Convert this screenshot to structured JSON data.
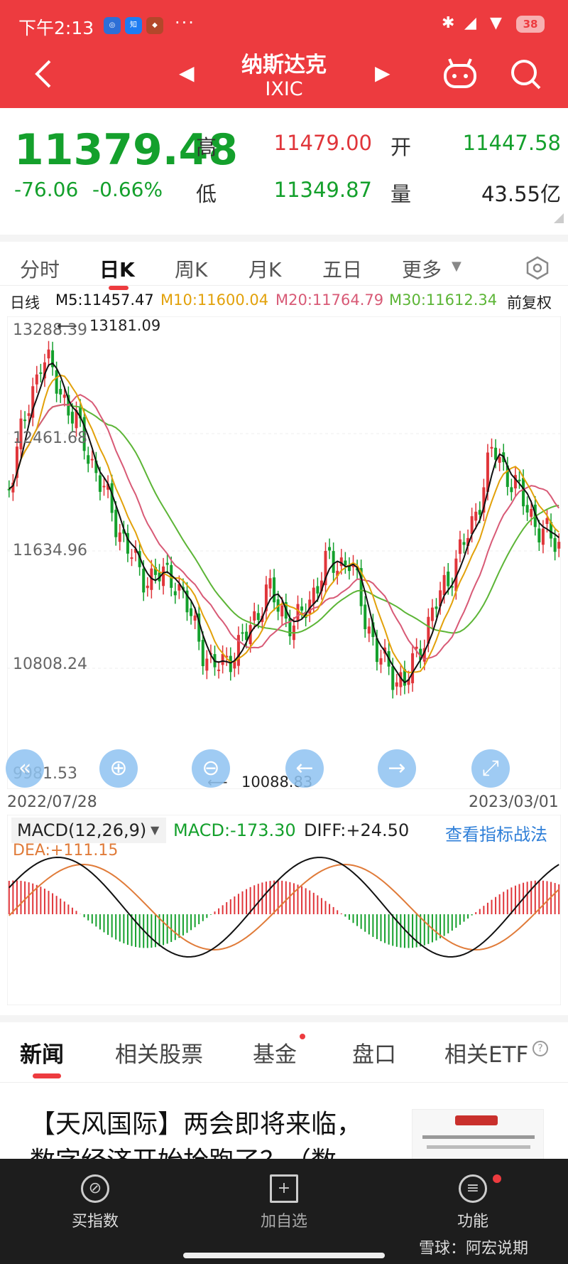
{
  "status_bar": {
    "time": "下午2:13",
    "battery": "38",
    "dots": "···"
  },
  "header": {
    "title": "纳斯达克",
    "code": "IXIC"
  },
  "quote": {
    "price": "11379.48",
    "change": "-76.06",
    "change_pct": "-0.66%",
    "high_label": "高",
    "high": "11479.00",
    "low_label": "低",
    "low": "11349.87",
    "open_label": "开",
    "open": "11447.58",
    "volume_label": "量",
    "volume": "43.55亿"
  },
  "tabs": [
    "分时",
    "日K",
    "周K",
    "月K",
    "五日",
    "更多"
  ],
  "ma": {
    "period": "日线",
    "m5": "M5:11457.47",
    "m10": "M10:11600.04",
    "m20": "M20:11764.79",
    "m30": "M30:11612.34",
    "adjust": "前复权"
  },
  "chart": {
    "y_labels": [
      "13288.39",
      "12461.68",
      "11634.96",
      "10808.24",
      "9981.53"
    ],
    "max_label": "13181.09",
    "min_label": "10088.83",
    "date_start": "2022/07/28",
    "date_end": "2023/03/01"
  },
  "macd": {
    "name": "MACD(12,26,9)",
    "macd": "MACD:-173.30",
    "diff": "DIFF:+24.50",
    "dea": "DEA:+111.15",
    "link": "查看指标战法"
  },
  "news_tabs": [
    "新闻",
    "相关股票",
    "基金",
    "盘口",
    "相关ETF"
  ],
  "news": {
    "headline1": "【天风国际】两会即将来临，",
    "headline2": "数字经济开始抢跑了？（数"
  },
  "bottom": {
    "buy": "买指数",
    "add": "加自选",
    "func": "功能",
    "watermark": "雪球：阿宏说期"
  },
  "colors": {
    "red": "#ed3b3f",
    "up": "#e0353a",
    "down": "#14a02c",
    "m5": "#111111",
    "m10": "#e2a10a",
    "m20": "#d85a76",
    "m30": "#5cb536"
  }
}
